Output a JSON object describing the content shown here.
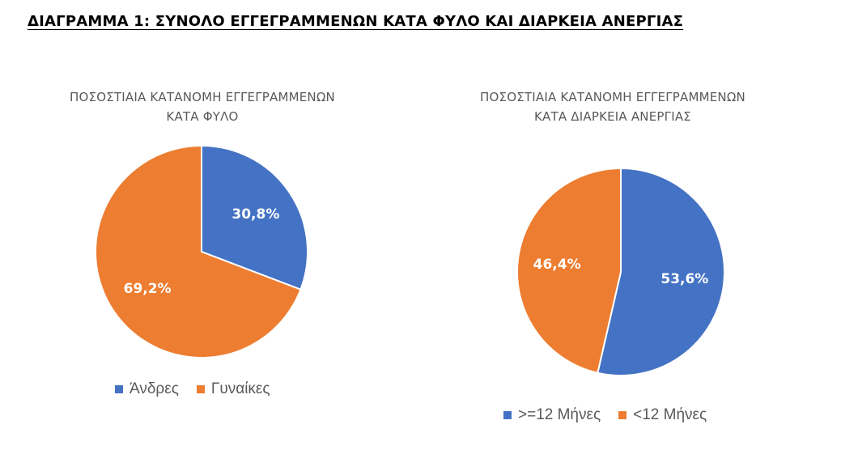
{
  "page": {
    "title": "ΔΙΑΓΡΑΜΜΑ 1: ΣΥΝΟΛΟ ΕΓΓΕΓΡΑΜΜΕΝΩΝ ΚΑΤΑ ΦΥΛΟ ΚΑΙ ΔΙΑΡΚΕΙΑ ΑΝΕΡΓΙΑΣ"
  },
  "chart_data": [
    {
      "type": "pie",
      "title_lines": [
        "ΠΟΣΟΣΤΙΑΙΑ ΚΑΤΑΝΟΜΗ ΕΓΓΕΓΡΑΜΜΕΝΩΝ",
        "ΚΑΤΑ ΦΥΛΟ"
      ],
      "categories": [
        "Άνδρες",
        "Γυναίκες"
      ],
      "values": [
        30.8,
        69.2
      ],
      "labels": [
        "30,8%",
        "69,2%"
      ],
      "colors": [
        "#4472C4",
        "#ED7D31"
      ],
      "legend_position": "bottom"
    },
    {
      "type": "pie",
      "title_lines": [
        "ΠΟΣΟΣΤΙΑΙΑ ΚΑΤΑΝΟΜΗ ΕΓΓΕΓΡΑΜΜΕΝΩΝ",
        "ΚΑΤΑ ΔΙΑΡΚΕΙΑ ΑΝΕΡΓΙΑΣ"
      ],
      "categories": [
        ">=12 Μήνες",
        "<12 Μήνες"
      ],
      "values": [
        53.6,
        46.4
      ],
      "labels": [
        "53,6%",
        "46,4%"
      ],
      "colors": [
        "#4472C4",
        "#ED7D31"
      ],
      "legend_position": "bottom"
    }
  ]
}
